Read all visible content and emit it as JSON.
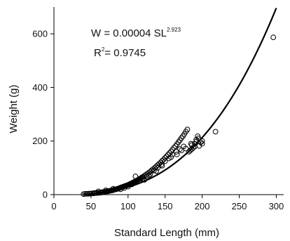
{
  "chart_data": {
    "type": "scatter",
    "title": "",
    "xlabel": "Standard Length (mm)",
    "ylabel": "Weight (g)",
    "xlim": [
      0,
      310
    ],
    "ylim": [
      0,
      700
    ],
    "x_ticks": [
      0,
      50,
      100,
      150,
      200,
      250,
      300
    ],
    "y_ticks": [
      0,
      200,
      400,
      600
    ],
    "grid": false,
    "annotations": {
      "equation": {
        "prefix": "W = 0.00004 SL",
        "exponent": "2.923"
      },
      "r2": {
        "label": "R",
        "power": "2",
        "value": "= 0.9745"
      }
    },
    "fit": {
      "a": 4e-05,
      "b": 2.923,
      "x_range": [
        40,
        300
      ]
    },
    "series": [
      {
        "marker": "open-circle",
        "points": [
          [
            40,
            2
          ],
          [
            42,
            3
          ],
          [
            44,
            3
          ],
          [
            46,
            3
          ],
          [
            48,
            4
          ],
          [
            50,
            4
          ],
          [
            52,
            5
          ],
          [
            54,
            5
          ],
          [
            55,
            6
          ],
          [
            56,
            6
          ],
          [
            58,
            6
          ],
          [
            60,
            7
          ],
          [
            62,
            7
          ],
          [
            63,
            8
          ],
          [
            64,
            8
          ],
          [
            65,
            9
          ],
          [
            66,
            9
          ],
          [
            68,
            10
          ],
          [
            69,
            10
          ],
          [
            70,
            11
          ],
          [
            71,
            12
          ],
          [
            72,
            12
          ],
          [
            73,
            13
          ],
          [
            74,
            13
          ],
          [
            75,
            14
          ],
          [
            76,
            15
          ],
          [
            77,
            15
          ],
          [
            78,
            16
          ],
          [
            79,
            16
          ],
          [
            80,
            17
          ],
          [
            81,
            18
          ],
          [
            82,
            19
          ],
          [
            83,
            20
          ],
          [
            84,
            20
          ],
          [
            85,
            21
          ],
          [
            86,
            22
          ],
          [
            87,
            23
          ],
          [
            88,
            24
          ],
          [
            89,
            25
          ],
          [
            90,
            26
          ],
          [
            91,
            27
          ],
          [
            92,
            28
          ],
          [
            93,
            29
          ],
          [
            94,
            30
          ],
          [
            95,
            31
          ],
          [
            96,
            32
          ],
          [
            97,
            33
          ],
          [
            98,
            34
          ],
          [
            99,
            35
          ],
          [
            100,
            36
          ],
          [
            101,
            37
          ],
          [
            102,
            39
          ],
          [
            103,
            40
          ],
          [
            104,
            41
          ],
          [
            105,
            43
          ],
          [
            106,
            44
          ],
          [
            107,
            45
          ],
          [
            108,
            47
          ],
          [
            109,
            48
          ],
          [
            110,
            50
          ],
          [
            111,
            51
          ],
          [
            112,
            53
          ],
          [
            113,
            54
          ],
          [
            114,
            56
          ],
          [
            115,
            58
          ],
          [
            116,
            59
          ],
          [
            117,
            61
          ],
          [
            118,
            63
          ],
          [
            119,
            65
          ],
          [
            120,
            66
          ],
          [
            122,
            70
          ],
          [
            124,
            74
          ],
          [
            126,
            78
          ],
          [
            128,
            82
          ],
          [
            130,
            86
          ],
          [
            132,
            91
          ],
          [
            134,
            95
          ],
          [
            136,
            100
          ],
          [
            138,
            105
          ],
          [
            140,
            110
          ],
          [
            142,
            115
          ],
          [
            144,
            120
          ],
          [
            146,
            126
          ],
          [
            148,
            131
          ],
          [
            150,
            137
          ],
          [
            152,
            143
          ],
          [
            154,
            149
          ],
          [
            156,
            155
          ],
          [
            158,
            161
          ],
          [
            160,
            168
          ],
          [
            162,
            175
          ],
          [
            164,
            181
          ],
          [
            166,
            188
          ],
          [
            168,
            196
          ],
          [
            170,
            203
          ],
          [
            172,
            211
          ],
          [
            174,
            218
          ],
          [
            176,
            226
          ],
          [
            178,
            235
          ],
          [
            180,
            243
          ],
          [
            182,
            160
          ],
          [
            184,
            165
          ],
          [
            186,
            170
          ],
          [
            188,
            175
          ],
          [
            190,
            190
          ],
          [
            192,
            205
          ],
          [
            194,
            218
          ],
          [
            196,
            182
          ],
          [
            198,
            195
          ],
          [
            200,
            200
          ],
          [
            90,
            20
          ],
          [
            95,
            25
          ],
          [
            100,
            30
          ],
          [
            105,
            38
          ],
          [
            110,
            45
          ],
          [
            115,
            52
          ],
          [
            120,
            60
          ],
          [
            125,
            68
          ],
          [
            130,
            76
          ],
          [
            135,
            90
          ],
          [
            140,
            100
          ],
          [
            145,
            112
          ],
          [
            150,
            125
          ],
          [
            155,
            135
          ],
          [
            160,
            150
          ],
          [
            165,
            160
          ],
          [
            170,
            170
          ],
          [
            175,
            180
          ],
          [
            185,
            190
          ],
          [
            190,
            180
          ],
          [
            60,
            12
          ],
          [
            70,
            16
          ],
          [
            80,
            22
          ],
          [
            110,
            68
          ],
          [
            122,
            55
          ],
          [
            128,
            72
          ],
          [
            138,
            88
          ],
          [
            146,
            108
          ],
          [
            158,
            140
          ],
          [
            166,
            150
          ],
          [
            172,
            165
          ],
          [
            178,
            172
          ],
          [
            186,
            185
          ],
          [
            192,
            198
          ],
          [
            195,
            210
          ],
          [
            200,
            190
          ],
          [
            218,
            235
          ],
          [
            296,
            587
          ]
        ]
      }
    ]
  }
}
